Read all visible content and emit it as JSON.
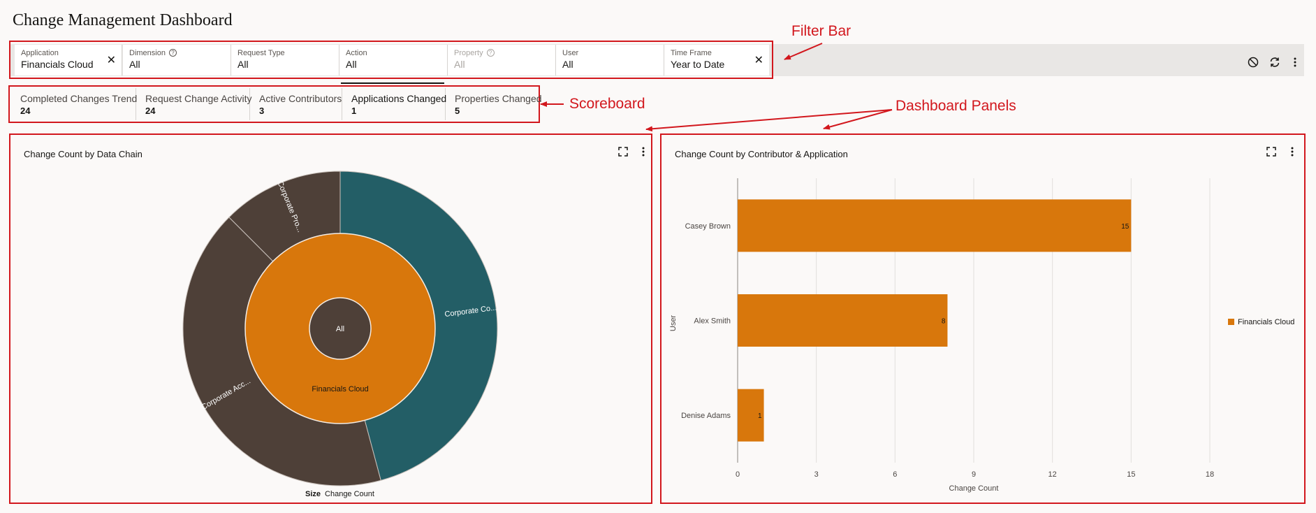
{
  "page": {
    "title": "Change Management Dashboard"
  },
  "filters": [
    {
      "label": "Application",
      "value": "Financials Cloud",
      "clearable": true,
      "help": false,
      "disabled": false
    },
    {
      "label": "Dimension",
      "value": "All",
      "clearable": false,
      "help": true,
      "disabled": false
    },
    {
      "label": "Request Type",
      "value": "All",
      "clearable": false,
      "help": false,
      "disabled": false
    },
    {
      "label": "Action",
      "value": "All",
      "clearable": false,
      "help": false,
      "disabled": false
    },
    {
      "label": "Property",
      "value": "All",
      "clearable": false,
      "help": true,
      "disabled": true
    },
    {
      "label": "User",
      "value": "All",
      "clearable": false,
      "help": false,
      "disabled": false
    },
    {
      "label": "Time Frame",
      "value": "Year to Date",
      "clearable": true,
      "help": false,
      "disabled": false
    }
  ],
  "toolbar": {
    "icons": [
      "reset-icon",
      "refresh-icon",
      "more-icon"
    ]
  },
  "annotations": {
    "filter_bar": "Filter Bar",
    "scoreboard": "Scoreboard",
    "dashboard_panels": "Dashboard Panels"
  },
  "scoreboard": [
    {
      "label": "Completed Changes Trend",
      "value": "24",
      "active": false
    },
    {
      "label": "Request Change Activity",
      "value": "24",
      "active": false
    },
    {
      "label": "Active Contributors",
      "value": "3",
      "active": false
    },
    {
      "label": "Applications Changed",
      "value": "1",
      "active": true
    },
    {
      "label": "Properties Changed",
      "value": "5",
      "active": false
    }
  ],
  "panels": {
    "left": {
      "title": "Change Count by Data Chain",
      "size_label": "Size",
      "size_value": "Change Count"
    },
    "right": {
      "title": "Change Count by Contributor & Application"
    }
  },
  "colors": {
    "accent_red": "#d2171d",
    "orange": "#d8770c",
    "dark_brown": "#4e4038",
    "teal": "#235e66"
  },
  "chart_data": [
    {
      "type": "sunburst",
      "title": "Change Count by Data Chain",
      "levels": [
        {
          "name": "All",
          "value": 24,
          "color": "#4e4038"
        },
        {
          "name": "Financials Cloud",
          "value": 24,
          "color": "#d8770c"
        },
        {
          "segments": [
            {
              "name": "Corporate Co...",
              "value": 11,
              "color": "#235e66"
            },
            {
              "name": "Corporate Acc...",
              "value": 10,
              "color": "#4e4038"
            },
            {
              "name": "Corporate Pro...",
              "value": 3,
              "color": "#4e4038"
            }
          ]
        }
      ],
      "size_label": "Size",
      "size_value": "Change Count"
    },
    {
      "type": "bar",
      "orientation": "horizontal",
      "title": "Change Count by Contributor & Application",
      "categories": [
        "Casey Brown",
        "Alex Smith",
        "Denise Adams"
      ],
      "series": [
        {
          "name": "Financials Cloud",
          "values": [
            15,
            8,
            1
          ]
        }
      ],
      "xlabel": "Change Count",
      "ylabel": "User",
      "xlim": [
        0,
        18
      ],
      "xticks": [
        "0",
        "3",
        "6",
        "9",
        "12",
        "15",
        "18"
      ],
      "grid": true,
      "legend": "right"
    }
  ]
}
